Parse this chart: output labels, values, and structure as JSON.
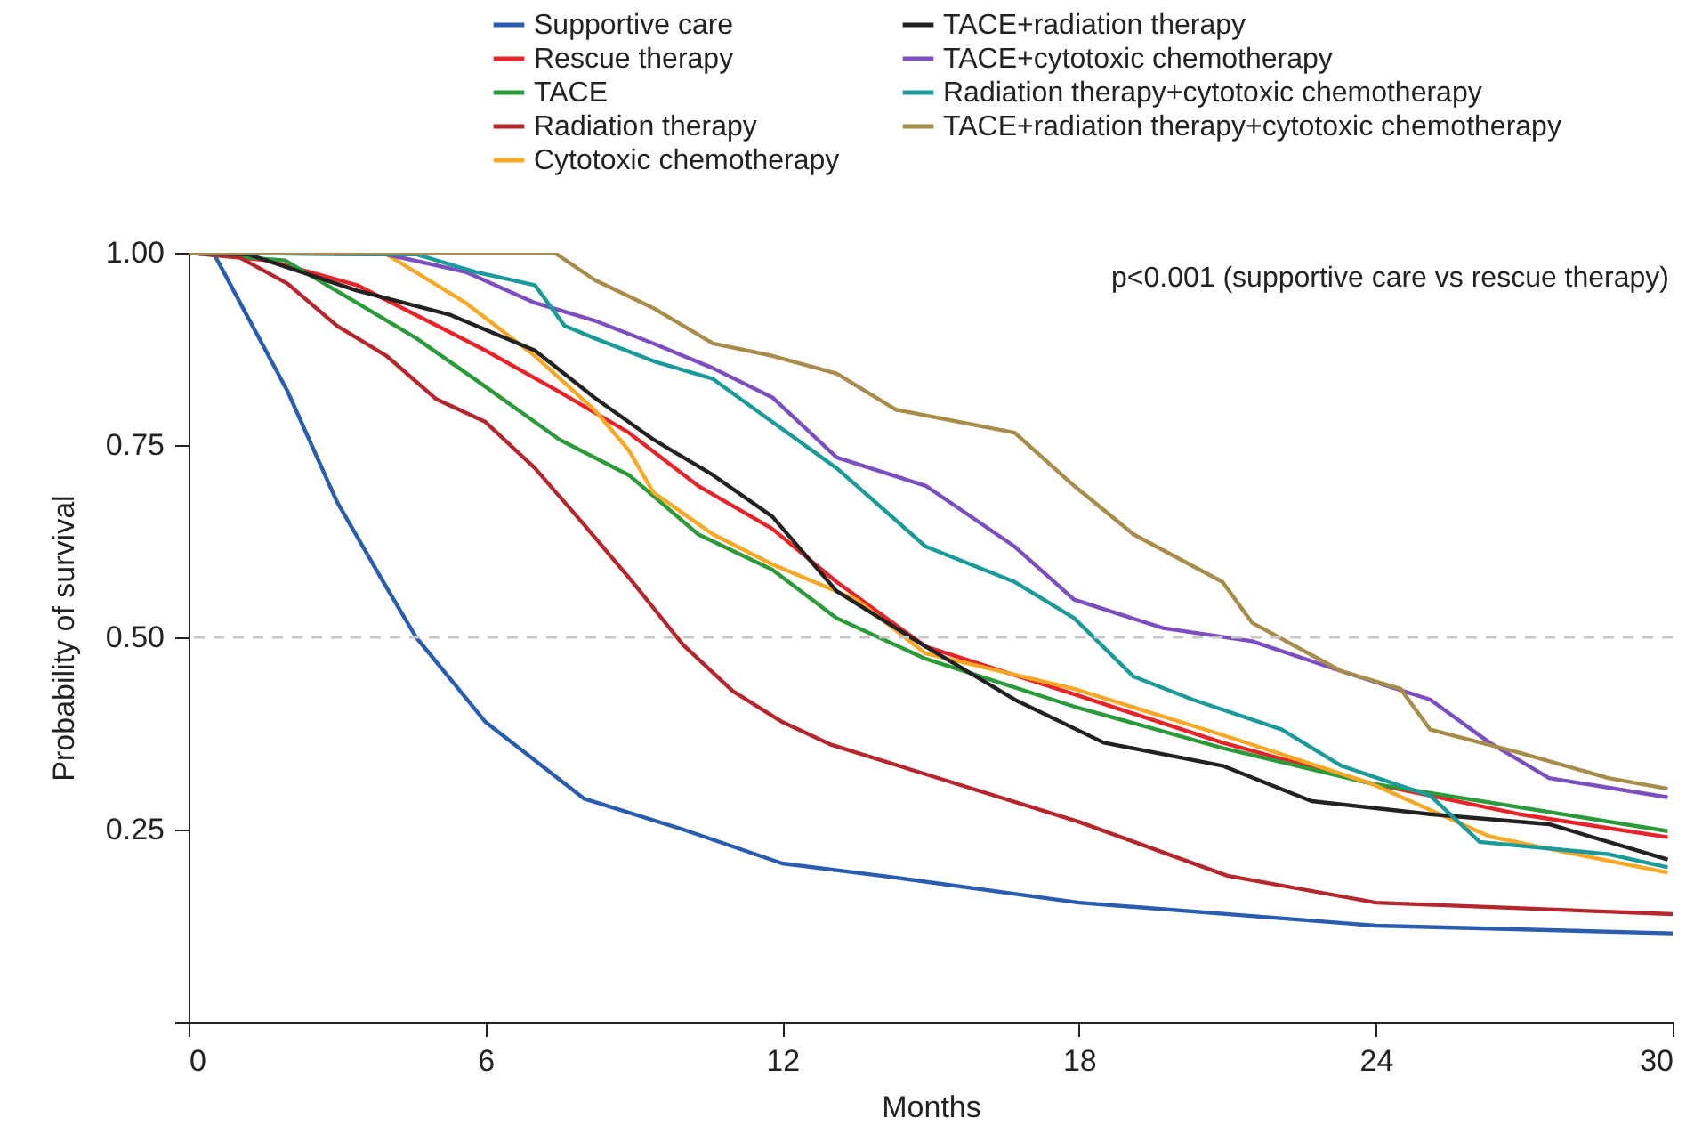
{
  "chart_data": {
    "type": "line",
    "xlabel": "Months",
    "ylabel": "Probability of survival",
    "annotations": [
      "p<0.001 (supportive care vs rescue therapy)"
    ],
    "xlim": [
      0,
      30
    ],
    "xticks": [
      0,
      6,
      12,
      18,
      24,
      30
    ],
    "ylim": [
      0,
      1
    ],
    "yticks": [
      {
        "value": 0,
        "label": null
      },
      0.25,
      {
        "value": 0.5,
        "label": "0.50"
      },
      0.75,
      {
        "value": 1,
        "label": "1.00"
      }
    ],
    "legend": "top",
    "ref_lines": [
      {
        "axis": "y",
        "value": 0.5,
        "color": "#c8c8c8",
        "line_style": "dashed"
      }
    ],
    "series": [
      {
        "name": "Supportive care",
        "color": "#2a5db0",
        "x": [
          0,
          0.5,
          1,
          2,
          3,
          4,
          4.6,
          6,
          8,
          10,
          12,
          14,
          18,
          24,
          30
        ],
        "values": [
          1,
          1,
          0.94,
          0.82,
          0.676,
          0.565,
          0.5,
          0.39,
          0.29,
          0.25,
          0.206,
          0.19,
          0.155,
          0.125,
          0.115
        ]
      },
      {
        "name": "Rescue therapy",
        "color": "#e8232a",
        "x": [
          0,
          1.6,
          3.4,
          4.6,
          6,
          7.5,
          8.9,
          10.3,
          11.8,
          13.1,
          14.9,
          17.9,
          20.9,
          23.9,
          26.9,
          29.9
        ],
        "values": [
          1,
          0.99,
          0.958,
          0.919,
          0.873,
          0.819,
          0.766,
          0.697,
          0.641,
          0.572,
          0.488,
          0.426,
          0.363,
          0.31,
          0.27,
          0.24
        ]
      },
      {
        "name": "TACE",
        "color": "#2a9a3a",
        "x": [
          0,
          1.95,
          3.4,
          4.6,
          6,
          7.5,
          8.9,
          10.3,
          11.8,
          13.1,
          14.9,
          17.9,
          20.9,
          23.9,
          29.9
        ],
        "values": [
          1,
          0.99,
          0.935,
          0.889,
          0.826,
          0.757,
          0.711,
          0.634,
          0.588,
          0.525,
          0.472,
          0.41,
          0.356,
          0.31,
          0.248
        ]
      },
      {
        "name": "Radiation therapy",
        "color": "#b5272d",
        "x": [
          0,
          1,
          2,
          3,
          4,
          5,
          6,
          7,
          8,
          9,
          10,
          11,
          12,
          13,
          15,
          18,
          21,
          24,
          30
        ],
        "values": [
          1,
          0.995,
          0.96,
          0.905,
          0.866,
          0.81,
          0.78,
          0.72,
          0.646,
          0.57,
          0.49,
          0.43,
          0.39,
          0.36,
          0.32,
          0.26,
          0.19,
          0.155,
          0.14
        ]
      },
      {
        "name": "Cytotoxic chemotherapy",
        "color": "#f9a825",
        "x": [
          0,
          4,
          5.6,
          7,
          8.2,
          8.9,
          9.4,
          10.6,
          11.8,
          13.5,
          14.9,
          17.9,
          20.9,
          23.9,
          26.3,
          27.5,
          29.9
        ],
        "values": [
          1,
          0.998,
          0.935,
          0.866,
          0.796,
          0.743,
          0.688,
          0.634,
          0.595,
          0.549,
          0.479,
          0.433,
          0.373,
          0.31,
          0.241,
          0.225,
          0.194
        ]
      },
      {
        "name": "TACE+radiation therapy",
        "color": "#222222",
        "x": [
          0,
          1.2,
          3.4,
          5.3,
          7,
          8.2,
          9.4,
          10.6,
          11.8,
          13.1,
          14.9,
          16.7,
          18.5,
          20.9,
          22.7,
          25.1,
          27.5,
          29.9
        ],
        "values": [
          1,
          0.998,
          0.951,
          0.919,
          0.873,
          0.812,
          0.757,
          0.711,
          0.657,
          0.56,
          0.488,
          0.419,
          0.363,
          0.333,
          0.287,
          0.27,
          0.257,
          0.211
        ]
      },
      {
        "name": "TACE+cytotoxic chemotherapy",
        "color": "#7b4fc0",
        "x": [
          0,
          4,
          5.6,
          7,
          8.2,
          9.4,
          10.6,
          11.8,
          13.1,
          14.9,
          16.7,
          17.9,
          19.7,
          21.5,
          23.3,
          25.1,
          26.3,
          27.5,
          29.9
        ],
        "values": [
          1,
          0.998,
          0.975,
          0.935,
          0.912,
          0.882,
          0.85,
          0.812,
          0.734,
          0.697,
          0.618,
          0.549,
          0.512,
          0.495,
          0.456,
          0.419,
          0.363,
          0.317,
          0.292
        ]
      },
      {
        "name": "Radiation therapy+cytotoxic chemotherapy",
        "color": "#1a9a9a",
        "x": [
          0,
          4.6,
          5.8,
          7,
          7.6,
          8.2,
          9.4,
          10.6,
          11.8,
          13.1,
          14.9,
          16.7,
          17.9,
          19.1,
          20.3,
          22.1,
          23.3,
          25.1,
          26.1,
          28.7,
          29.9
        ],
        "values": [
          1,
          0.998,
          0.975,
          0.958,
          0.905,
          0.889,
          0.859,
          0.836,
          0.78,
          0.72,
          0.618,
          0.572,
          0.525,
          0.449,
          0.419,
          0.38,
          0.333,
          0.294,
          0.234,
          0.218,
          0.201
        ]
      },
      {
        "name": "TACE+radiation therapy+cytotoxic chemotherapy",
        "color": "#a88d4a",
        "x": [
          0,
          7.4,
          8.2,
          9.4,
          10.6,
          11.8,
          13.1,
          14.3,
          16.7,
          17.9,
          19.1,
          20.9,
          21.5,
          23.3,
          24.5,
          25.1,
          26.9,
          28.7,
          29.9
        ],
        "values": [
          1,
          1,
          0.965,
          0.928,
          0.882,
          0.866,
          0.843,
          0.796,
          0.766,
          0.697,
          0.634,
          0.572,
          0.519,
          0.456,
          0.433,
          0.38,
          0.35,
          0.317,
          0.303
        ]
      }
    ]
  }
}
